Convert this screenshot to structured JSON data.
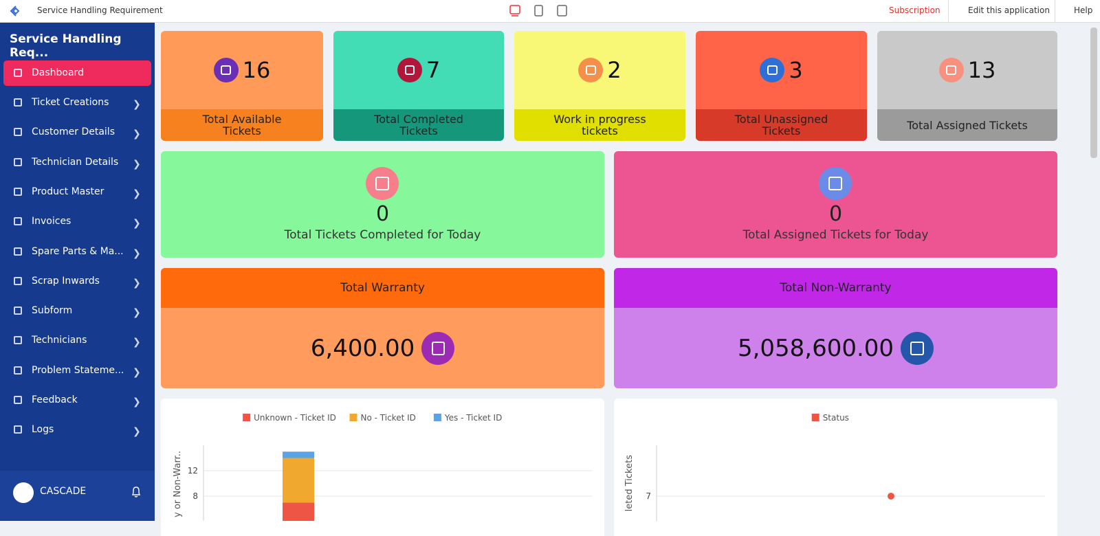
{
  "topbar": {
    "title": "Service Handling Requirement",
    "subscription": "Subscription",
    "edit": "Edit this application",
    "help": "Help"
  },
  "sidebar": {
    "title": "Service Handling Req...",
    "items": [
      "Dashboard",
      "Ticket Creations",
      "Customer Details",
      "Technician Details",
      "Product Master",
      "Invoices",
      "Spare Parts & Ma...",
      "Scrap Inwards",
      "Subform",
      "Technicians",
      "Problem Stateme...",
      "Feedback",
      "Logs"
    ],
    "user": "CASCADE"
  },
  "kpis": [
    {
      "value": 16,
      "label": "Total Available Tickets"
    },
    {
      "value": 7,
      "label": "Total Completed Tickets"
    },
    {
      "value": 2,
      "label": "Work in progress tickets"
    },
    {
      "value": 3,
      "label": "Total Unassigned Tickets"
    },
    {
      "value": 13,
      "label": "Total Assigned Tickets"
    }
  ],
  "today": [
    {
      "value": 0,
      "label": "Total Tickets Completed for Today"
    },
    {
      "value": 0,
      "label": "Total Assigned Tickets for Today"
    }
  ],
  "totals": [
    {
      "title": "Total Warranty",
      "value": "6,400.00"
    },
    {
      "title": "Total Non-Warranty",
      "value": "5,058,600.00"
    }
  ],
  "chart_data": [
    {
      "type": "stacked-bar",
      "y_label": "y or Non-Warr..",
      "categories": [
        null
      ],
      "series": [
        {
          "name": "Unknown - Ticket ID",
          "color": "#ee5545",
          "values": [
            7
          ]
        },
        {
          "name": "No - Ticket ID",
          "color": "#f0a92e",
          "values": [
            7
          ]
        },
        {
          "name": "Yes - Ticket ID",
          "color": "#5aa3e6",
          "values": [
            1
          ]
        }
      ],
      "ylim": [
        0,
        16
      ],
      "yticks": [
        8,
        12
      ],
      "grid": true
    },
    {
      "type": "scatter",
      "y_label": "leted Tickets",
      "categories": [
        null
      ],
      "series": [
        {
          "name": "Status",
          "color": "#ee5545",
          "values": [
            7
          ]
        }
      ],
      "ylim": [
        5,
        9
      ],
      "yticks": [
        7
      ],
      "grid": true
    }
  ]
}
